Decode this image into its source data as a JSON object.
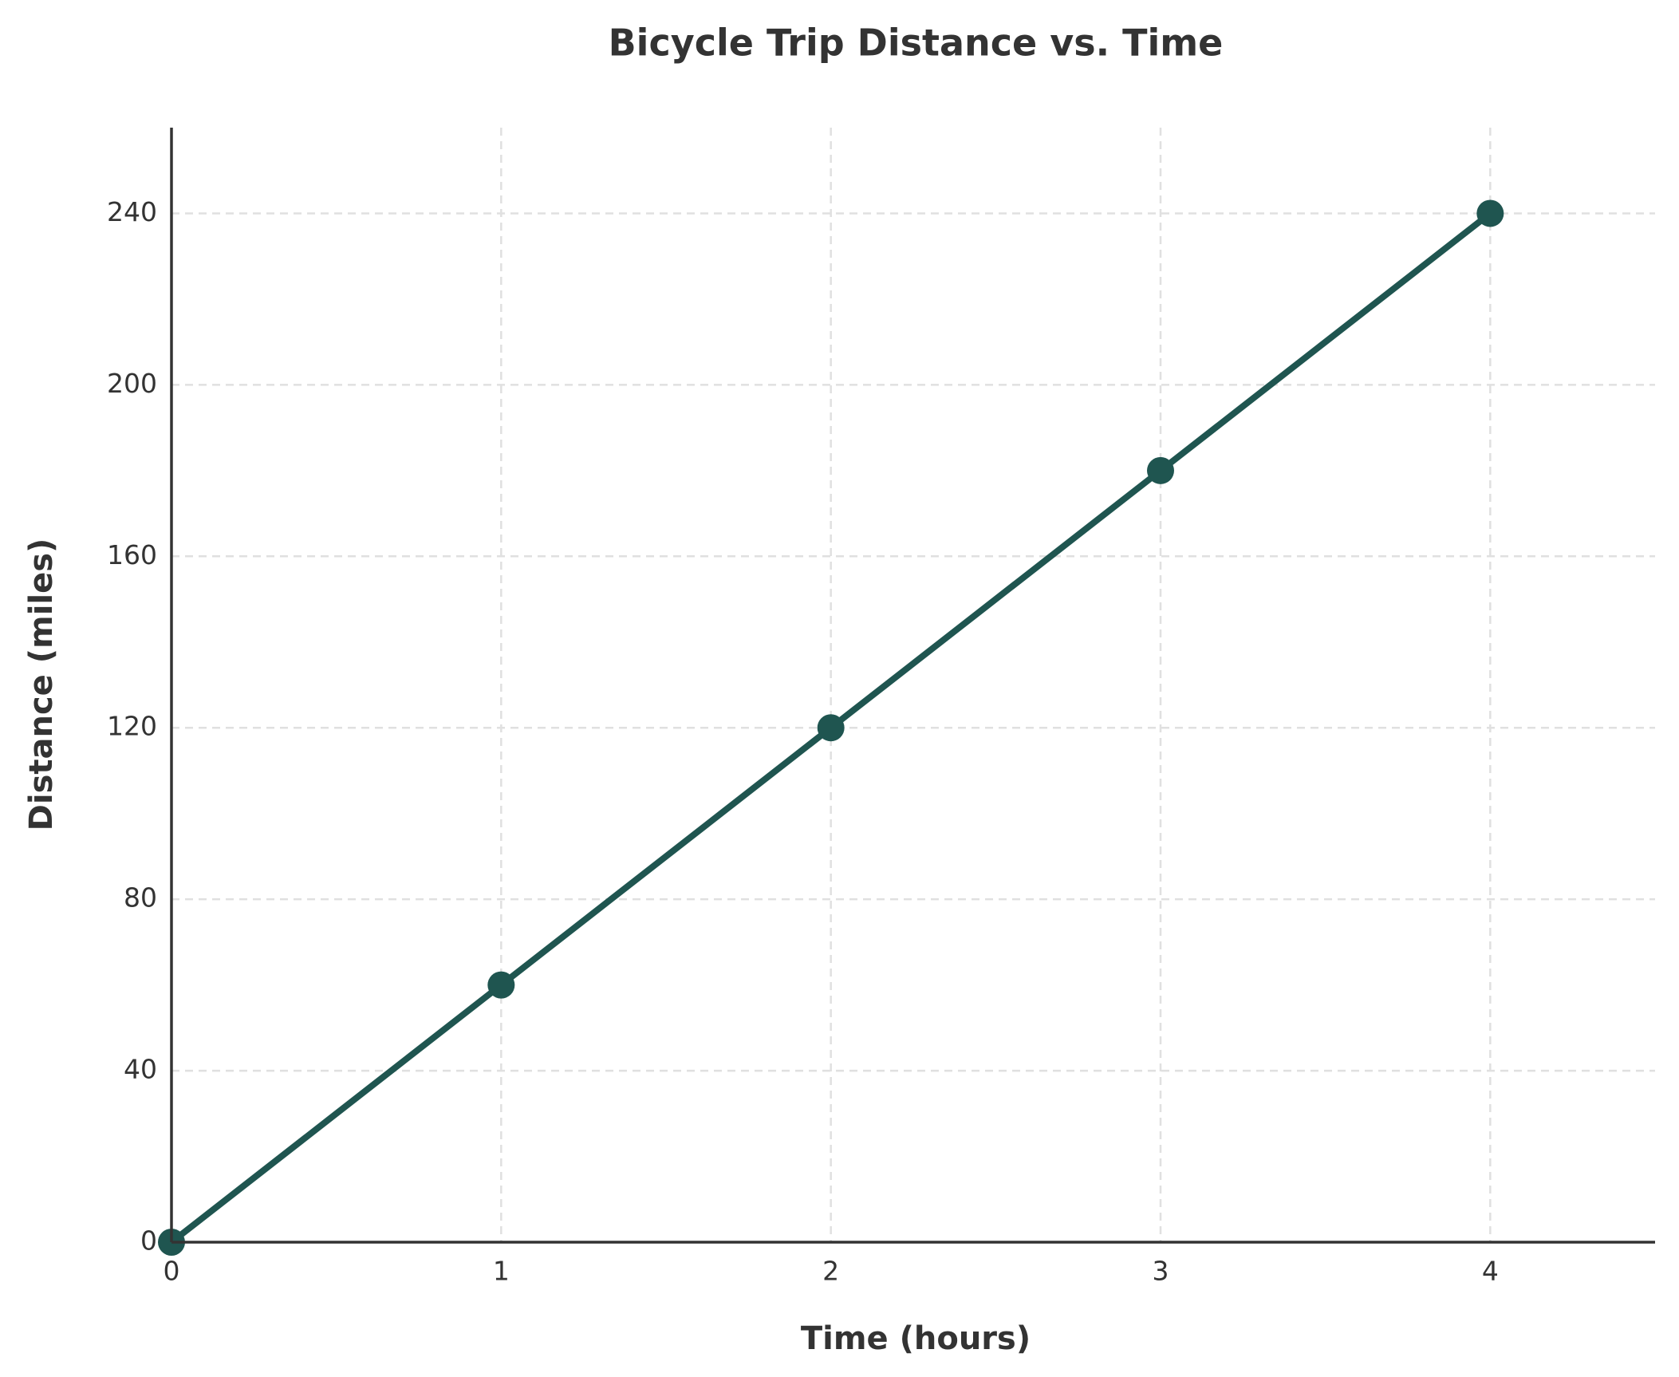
{
  "chart_data": {
    "type": "line",
    "title": "Bicycle Trip Distance vs. Time",
    "x_label": "Time (hours)",
    "y_label": "Distance (miles)",
    "x": [
      0,
      1,
      2,
      3,
      4
    ],
    "values": [
      0,
      60,
      120,
      180,
      240
    ],
    "color": "#1f5550",
    "xlim": [
      0,
      4.5
    ],
    "ylim": [
      0,
      260
    ],
    "xticks": [
      0,
      1,
      2,
      3,
      4
    ],
    "yticks": [
      0,
      40,
      80,
      120,
      160,
      200,
      240
    ],
    "grid": true
  }
}
